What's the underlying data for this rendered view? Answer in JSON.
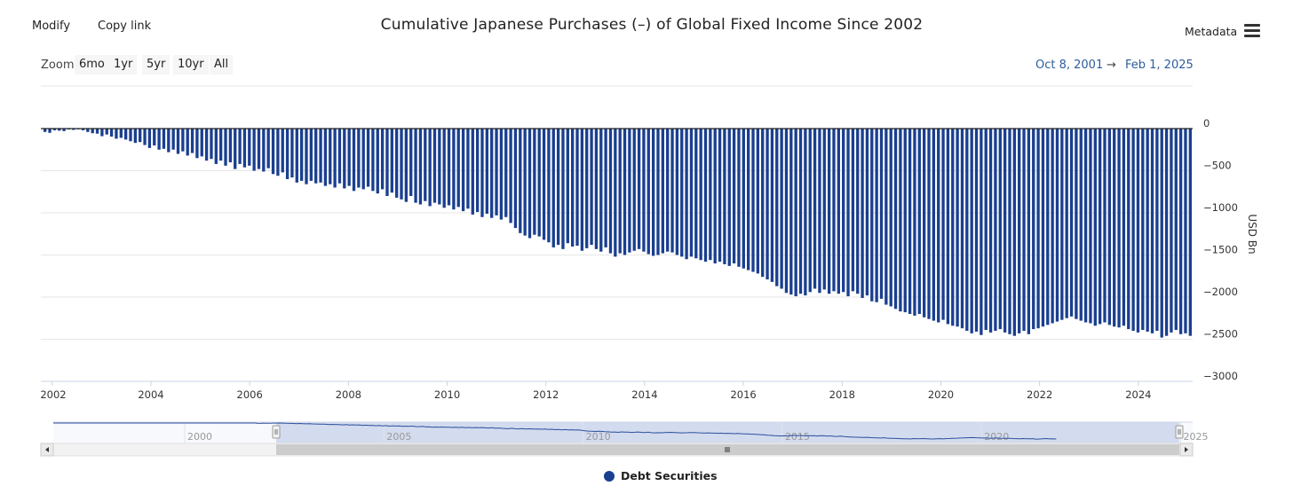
{
  "toolbar": {
    "modify": "Modify",
    "copy_link": "Copy link",
    "metadata": "Metadata"
  },
  "zoom": {
    "label": "Zoom",
    "buttons": [
      "6mo",
      "1yr",
      "5yr",
      "10yr",
      "All"
    ]
  },
  "range": {
    "from": "Oct 8, 2001",
    "arrow": "→",
    "to": "Feb 1, 2025"
  },
  "legend": {
    "series": "Debt Securities"
  },
  "colors": {
    "bar": "#1a3f8f",
    "navigator_fill": "#d3dbee",
    "navigator_line": "#2b4f9c",
    "range_text": "#2d5d9c"
  },
  "navigator": {
    "labels": [
      "2000",
      "2005",
      "2010",
      "2015",
      "2020",
      "2025"
    ],
    "selected_from": 2001.77,
    "selected_to": 2025.08,
    "domain": [
      1996.7,
      2025.3
    ]
  },
  "chart_data": {
    "type": "bar",
    "title": "Cumulative Japanese Purchases (–) of Global Fixed Income Since 2002",
    "ylabel": "USD Bn",
    "xlabel": "",
    "ylim": [
      -3000,
      0
    ],
    "yticks": [
      "0",
      "−500",
      "−1000",
      "−1500",
      "−2000",
      "−2500",
      "−3000"
    ],
    "ytick_values": [
      0,
      -500,
      -1000,
      -1500,
      -2000,
      -2500,
      -3000
    ],
    "xticks": [
      "2002",
      "2004",
      "2006",
      "2008",
      "2010",
      "2012",
      "2014",
      "2016",
      "2018",
      "2020",
      "2022",
      "2024"
    ],
    "xtick_values": [
      2002,
      2004,
      2006,
      2008,
      2010,
      2012,
      2014,
      2016,
      2018,
      2020,
      2022,
      2024
    ],
    "xlim": [
      2001.77,
      2025.1
    ],
    "start": 2001.8,
    "step_years": 0.0833,
    "series": [
      {
        "name": "Debt Securities",
        "values": [
          -40,
          -50,
          -20,
          -25,
          -30,
          -10,
          -15,
          -5,
          -20,
          -40,
          -55,
          -60,
          -90,
          -70,
          -95,
          -120,
          -110,
          -130,
          -150,
          -170,
          -160,
          -195,
          -230,
          -200,
          -250,
          -240,
          -280,
          -250,
          -300,
          -270,
          -320,
          -290,
          -350,
          -330,
          -380,
          -360,
          -420,
          -380,
          -440,
          -400,
          -480,
          -420,
          -460,
          -440,
          -500,
          -480,
          -510,
          -470,
          -540,
          -560,
          -520,
          -600,
          -580,
          -640,
          -620,
          -660,
          -620,
          -650,
          -640,
          -680,
          -660,
          -700,
          -650,
          -710,
          -680,
          -740,
          -700,
          -720,
          -690,
          -740,
          -770,
          -720,
          -800,
          -760,
          -820,
          -840,
          -870,
          -800,
          -880,
          -900,
          -860,
          -920,
          -880,
          -900,
          -940,
          -910,
          -960,
          -930,
          -980,
          -950,
          -1020,
          -990,
          -1050,
          -1010,
          -1060,
          -1030,
          -1080,
          -1050,
          -1120,
          -1180,
          -1240,
          -1270,
          -1300,
          -1260,
          -1280,
          -1320,
          -1350,
          -1410,
          -1380,
          -1430,
          -1360,
          -1400,
          -1390,
          -1450,
          -1420,
          -1380,
          -1430,
          -1460,
          -1410,
          -1480,
          -1520,
          -1480,
          -1500,
          -1470,
          -1450,
          -1430,
          -1460,
          -1490,
          -1510,
          -1500,
          -1480,
          -1460,
          -1470,
          -1500,
          -1520,
          -1550,
          -1520,
          -1540,
          -1560,
          -1580,
          -1560,
          -1600,
          -1580,
          -1610,
          -1630,
          -1600,
          -1640,
          -1660,
          -1680,
          -1700,
          -1720,
          -1760,
          -1790,
          -1820,
          -1870,
          -1900,
          -1950,
          -1970,
          -1990,
          -1960,
          -1980,
          -1940,
          -1900,
          -1950,
          -1910,
          -1960,
          -1930,
          -1960,
          -1940,
          -1990,
          -1930,
          -1960,
          -2010,
          -1980,
          -2050,
          -2060,
          -2020,
          -2090,
          -2110,
          -2140,
          -2170,
          -2180,
          -2200,
          -2220,
          -2200,
          -2240,
          -2260,
          -2280,
          -2300,
          -2270,
          -2320,
          -2340,
          -2350,
          -2370,
          -2400,
          -2430,
          -2410,
          -2450,
          -2390,
          -2420,
          -2400,
          -2380,
          -2420,
          -2440,
          -2460,
          -2430,
          -2400,
          -2440,
          -2380,
          -2370,
          -2350,
          -2330,
          -2310,
          -2290,
          -2270,
          -2250,
          -2230,
          -2260,
          -2280,
          -2300,
          -2310,
          -2340,
          -2320,
          -2300,
          -2330,
          -2350,
          -2360,
          -2340,
          -2380,
          -2400,
          -2420,
          -2390,
          -2410,
          -2430,
          -2400,
          -2480,
          -2460,
          -2420,
          -2390,
          -2440,
          -2430,
          -2460
        ]
      }
    ]
  }
}
